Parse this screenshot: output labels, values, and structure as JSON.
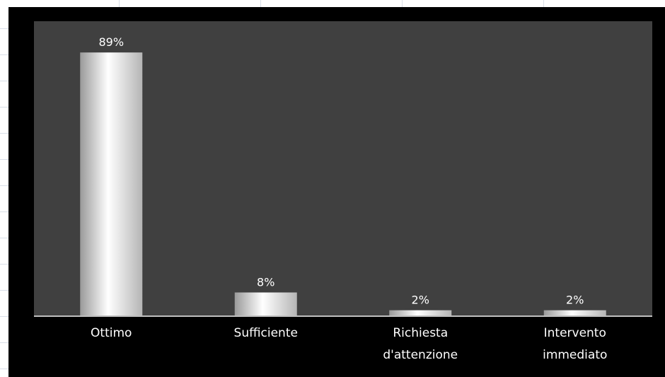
{
  "chart_data": {
    "type": "bar",
    "categories": [
      [
        "Ottimo"
      ],
      [
        "Sufficiente"
      ],
      [
        "Richiesta",
        "d'attenzione"
      ],
      [
        "Intervento",
        "immediato"
      ]
    ],
    "values": [
      89,
      8,
      2,
      2
    ],
    "value_labels": [
      "89%",
      "8%",
      "2%",
      "2%"
    ],
    "ylim": [
      0,
      90
    ],
    "grid": false,
    "legend": "none",
    "colors": {
      "chart_background": "#000000",
      "plot_background": "#404040",
      "bar_light": "#ffffff",
      "bar_dark": "#9a9a9a",
      "axis": "#bfbfbf",
      "text": "#ffffff"
    }
  }
}
